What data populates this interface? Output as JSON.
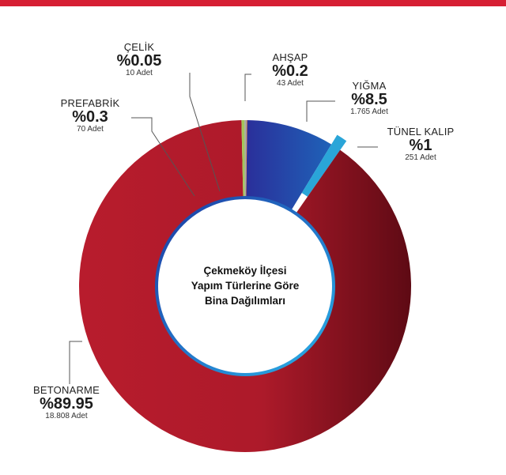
{
  "center_title_lines": [
    "Çekmeköy İlçesi",
    "Yapım Türlerine Göre",
    "Bina Dağılımları"
  ],
  "colors": {
    "top_bar": "#d61f33",
    "ring_inner": "#1e3fa0",
    "ring_inner_light": "#2aa7df"
  },
  "chart_data": {
    "type": "pie",
    "title": "Çekmeköy İlçesi Yapım Türlerine Göre Bina Dağılımları",
    "slices": [
      {
        "label": "AHŞAP",
        "percent_text": "%0.2",
        "count_text": "43 Adet",
        "value": 0.2,
        "color": "#f28c28"
      },
      {
        "label": "YIĞMA",
        "percent_text": "%8.5",
        "count_text": "1.765 Adet",
        "value": 8.5,
        "color": "#2b3aa0"
      },
      {
        "label": "TÜNEL KALIP",
        "percent_text": "%1",
        "count_text": "251 Adet",
        "value": 1,
        "color": "#2aa5d8"
      },
      {
        "label": "BETONARME",
        "percent_text": "%89.95",
        "count_text": "18.808 Adet",
        "value": 89.95,
        "color": "#b51d2c"
      },
      {
        "label": "PREFABRİK",
        "percent_text": "%0.3",
        "count_text": "70 Adet",
        "value": 0.3,
        "color": "#a3c65a"
      },
      {
        "label": "ÇELİK",
        "percent_text": "%0.05",
        "count_text": "10 Adet",
        "value": 0.05,
        "color": "#a8a8a8"
      }
    ]
  }
}
